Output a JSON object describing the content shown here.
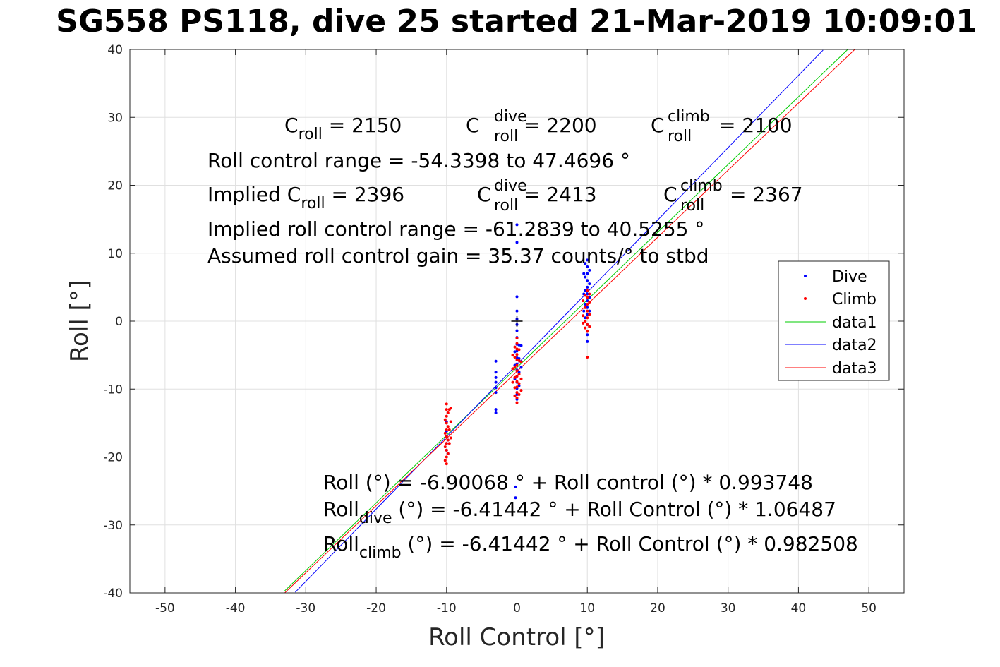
{
  "chart_data": {
    "type": "scatter",
    "title": "SG558 PS118, dive 25 started 21-Mar-2019 10:09:01",
    "xlabel": "Roll Control [°]",
    "ylabel": "Roll [°]",
    "xlim": [
      -55,
      55
    ],
    "ylim": [
      -40,
      40
    ],
    "xticks": [
      -50,
      -40,
      -30,
      -20,
      -10,
      0,
      10,
      20,
      30,
      40,
      50
    ],
    "yticks": [
      -40,
      -30,
      -20,
      -10,
      0,
      10,
      20,
      30,
      40
    ],
    "grid": true,
    "legend_position": "right",
    "colors": {
      "dive": "#0000ff",
      "climb": "#ff0000",
      "data1": "#00cc00",
      "data2": "#0000ff",
      "data3": "#ff0000"
    },
    "legend": [
      "Dive",
      "Climb",
      "data1",
      "data2",
      "data3"
    ],
    "series": [
      {
        "name": "Dive",
        "kind": "points",
        "color": "#0000ff",
        "points": [
          [
            0,
            14.2
          ],
          [
            0,
            11.6
          ],
          [
            0,
            3.6
          ],
          [
            0,
            1.5
          ],
          [
            0,
            0.3
          ],
          [
            0,
            -0.5
          ],
          [
            0,
            -1.4
          ],
          [
            0,
            -2.4
          ],
          [
            0,
            -3.4
          ],
          [
            0,
            -4.4
          ],
          [
            0,
            -5.4
          ],
          [
            0,
            -6.3
          ],
          [
            0,
            -7.2
          ],
          [
            0,
            -8.1
          ],
          [
            0,
            -9.0
          ],
          [
            0,
            -9.9
          ],
          [
            0,
            -10.8
          ],
          [
            0,
            -11.5
          ],
          [
            0.3,
            -3.5
          ],
          [
            0.3,
            -5.5
          ],
          [
            0.3,
            -7.5
          ],
          [
            0.3,
            -9.5
          ],
          [
            -0.3,
            -4.5
          ],
          [
            -0.3,
            -6.5
          ],
          [
            -0.3,
            -8.5
          ],
          [
            0.6,
            -3.6
          ],
          [
            0.6,
            -6.8
          ],
          [
            -0.2,
            -24.4
          ],
          [
            -0.2,
            -26.0
          ],
          [
            -3,
            -5.9
          ],
          [
            -3,
            -7.5
          ],
          [
            -3,
            -8.3
          ],
          [
            -3,
            -9.0
          ],
          [
            -3,
            -9.8
          ],
          [
            -3,
            -10.5
          ],
          [
            -3,
            -13.0
          ],
          [
            -3,
            -13.5
          ],
          [
            -10,
            -16.2
          ],
          [
            -10,
            -17.0
          ],
          [
            -10,
            -18.0
          ],
          [
            -10,
            -19.0
          ],
          [
            -10,
            -14.8
          ],
          [
            -9.8,
            -17.5
          ],
          [
            -9.8,
            -19.5
          ],
          [
            10,
            9.0
          ],
          [
            10,
            8.0
          ],
          [
            10,
            7.0
          ],
          [
            10,
            6.0
          ],
          [
            10,
            5.0
          ],
          [
            10,
            4.0
          ],
          [
            10,
            3.0
          ],
          [
            10,
            2.0
          ],
          [
            10,
            1.0
          ],
          [
            10,
            -0.5
          ],
          [
            10,
            -2.0
          ],
          [
            10,
            -3.0
          ],
          [
            9.7,
            8.5
          ],
          [
            9.7,
            6.5
          ],
          [
            9.7,
            4.5
          ],
          [
            9.7,
            2.5
          ],
          [
            9.7,
            0.5
          ],
          [
            9.5,
            7.0
          ],
          [
            9.5,
            4.0
          ],
          [
            9.5,
            1.5
          ],
          [
            10.3,
            7.5
          ],
          [
            10.3,
            5.5
          ],
          [
            10.3,
            3.5
          ],
          [
            10.3,
            1.5
          ]
        ]
      },
      {
        "name": "Climb",
        "kind": "points",
        "color": "#ff0000",
        "points": [
          [
            -10,
            -12.2
          ],
          [
            -10,
            -13.0
          ],
          [
            -10,
            -14.0
          ],
          [
            -10,
            -15.0
          ],
          [
            -10,
            -16.0
          ],
          [
            -10,
            -17.0
          ],
          [
            -10,
            -18.0
          ],
          [
            -10,
            -19.0
          ],
          [
            -10,
            -20.0
          ],
          [
            -10,
            -21.0
          ],
          [
            -10.2,
            -14.5
          ],
          [
            -10.2,
            -16.5
          ],
          [
            -10.2,
            -18.5
          ],
          [
            -10.2,
            -20.5
          ],
          [
            -9.8,
            -13.5
          ],
          [
            -9.8,
            -15.5
          ],
          [
            -9.8,
            -17.5
          ],
          [
            -9.8,
            -19.5
          ],
          [
            -9.6,
            -13.0
          ],
          [
            -9.6,
            -16.0
          ],
          [
            -9.6,
            -18.0
          ],
          [
            -9.4,
            -12.8
          ],
          [
            -9.4,
            -14.8
          ],
          [
            -9.4,
            -17.2
          ],
          [
            0,
            -2.5
          ],
          [
            0,
            -3.3
          ],
          [
            0,
            -4.1
          ],
          [
            0,
            -4.9
          ],
          [
            0,
            -5.7
          ],
          [
            0,
            -6.5
          ],
          [
            0,
            -7.3
          ],
          [
            0,
            -8.1
          ],
          [
            0,
            -8.9
          ],
          [
            0,
            -9.7
          ],
          [
            0,
            -10.5
          ],
          [
            0,
            -11.3
          ],
          [
            0,
            -12.0
          ],
          [
            -0.3,
            -3.8
          ],
          [
            -0.3,
            -5.3
          ],
          [
            -0.3,
            -6.8
          ],
          [
            -0.3,
            -8.3
          ],
          [
            -0.3,
            -9.8
          ],
          [
            -0.3,
            -11.0
          ],
          [
            0.3,
            -4.2
          ],
          [
            0.3,
            -5.8
          ],
          [
            0.3,
            -7.8
          ],
          [
            0.3,
            -9.2
          ],
          [
            0.3,
            -10.8
          ],
          [
            -0.6,
            -5.0
          ],
          [
            -0.6,
            -7.0
          ],
          [
            -0.6,
            -9.0
          ],
          [
            0.6,
            -6.0
          ],
          [
            0.6,
            -8.5
          ],
          [
            0.6,
            -10.2
          ],
          [
            10,
            4.5
          ],
          [
            10,
            3.5
          ],
          [
            10,
            2.5
          ],
          [
            10,
            1.5
          ],
          [
            10,
            0.5
          ],
          [
            10,
            -0.5
          ],
          [
            10,
            -1.5
          ],
          [
            10,
            -5.3
          ],
          [
            9.7,
            3.8
          ],
          [
            9.7,
            2.0
          ],
          [
            9.7,
            0.0
          ],
          [
            9.7,
            -1.0
          ],
          [
            10.3,
            4.0
          ],
          [
            10.3,
            2.8
          ],
          [
            10.3,
            1.0
          ],
          [
            10.3,
            -0.8
          ],
          [
            9.4,
            3.0
          ],
          [
            9.4,
            0.8
          ],
          [
            9.4,
            -0.3
          ]
        ]
      },
      {
        "name": "data1",
        "kind": "line",
        "color": "#00cc00",
        "x": [
          -33,
          47
        ],
        "y": [
          -39.7,
          40.0
        ]
      },
      {
        "name": "data2",
        "kind": "line",
        "color": "#0000ff",
        "x": [
          -31.5,
          43.5
        ],
        "y": [
          -39.9,
          39.9
        ]
      },
      {
        "name": "data3",
        "kind": "line",
        "color": "#ff0000",
        "x": [
          -33,
          48
        ],
        "y": [
          -40.0,
          40.0
        ]
      }
    ],
    "origin_marker": [
      0,
      0
    ],
    "annotations": {
      "c_roll": "C",
      "c_roll_sub": "roll",
      "c_roll_val": " = 2150",
      "c_dive": "C",
      "c_dive_sup": "dive",
      "c_dive_sub": "roll",
      "c_dive_val": " = 2200",
      "c_climb": "C",
      "c_climb_sup": "climb",
      "c_climb_sub": "roll",
      "c_climb_val": " = 2100",
      "range_line": "Roll control range = -54.3398 to 47.4696 °",
      "implied_c": "Implied C",
      "implied_c_sub": "roll",
      "implied_c_val": " = 2396",
      "implied_dive": "C",
      "implied_dive_sup": "dive",
      "implied_dive_sub": "roll",
      "implied_dive_val": " = 2413",
      "implied_climb": "C",
      "implied_climb_sup": "climb",
      "implied_climb_sub": "roll",
      "implied_climb_val": " = 2367",
      "implied_range": "Implied roll control range = -61.2839 to 40.5255 °",
      "gain_line": "Assumed roll control gain = 35.37 counts/° to stbd",
      "fit_all": "Roll (°) = -6.90068 ° + Roll control (°) * 0.993748",
      "fit_dive_a": "Roll",
      "fit_dive_sub": "dive",
      "fit_dive_b": " (°) = -6.41442 ° + Roll Control (°) * 1.06487",
      "fit_climb_a": "Roll",
      "fit_climb_sub": "climb",
      "fit_climb_b": " (°) = -6.41442 ° + Roll Control (°) * 0.982508"
    }
  }
}
